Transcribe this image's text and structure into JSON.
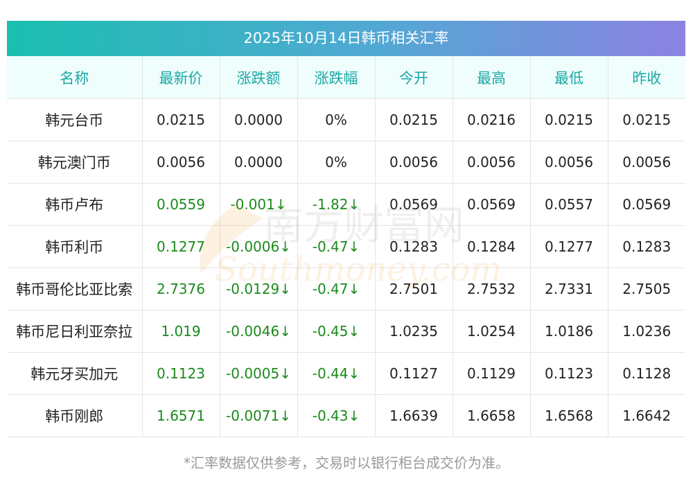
{
  "chart_data": {
    "type": "table",
    "title": "2025年10月14日韩币相关汇率",
    "columns": [
      "名称",
      "最新价",
      "涨跌额",
      "涨跌幅",
      "今开",
      "最高",
      "最低",
      "昨收"
    ],
    "rows": [
      {
        "name": "韩元台币",
        "latest": "0.0215",
        "change": "0.0000",
        "pct": "0%",
        "open": "0.0215",
        "high": "0.0216",
        "low": "0.0215",
        "prev": "0.0215",
        "down": false
      },
      {
        "name": "韩元澳门币",
        "latest": "0.0056",
        "change": "0.0000",
        "pct": "0%",
        "open": "0.0056",
        "high": "0.0056",
        "low": "0.0056",
        "prev": "0.0056",
        "down": false
      },
      {
        "name": "韩币卢布",
        "latest": "0.0559",
        "change": "-0.001↓",
        "pct": "-1.82↓",
        "open": "0.0569",
        "high": "0.0569",
        "low": "0.0557",
        "prev": "0.0569",
        "down": true
      },
      {
        "name": "韩币利币",
        "latest": "0.1277",
        "change": "-0.0006↓",
        "pct": "-0.47↓",
        "open": "0.1283",
        "high": "0.1284",
        "low": "0.1277",
        "prev": "0.1283",
        "down": true
      },
      {
        "name": "韩币哥伦比亚比索",
        "latest": "2.7376",
        "change": "-0.0129↓",
        "pct": "-0.47↓",
        "open": "2.7501",
        "high": "2.7532",
        "low": "2.7331",
        "prev": "2.7505",
        "down": true
      },
      {
        "name": "韩币尼日利亚奈拉",
        "latest": "1.019",
        "change": "-0.0046↓",
        "pct": "-0.45↓",
        "open": "1.0235",
        "high": "1.0254",
        "low": "1.0186",
        "prev": "1.0236",
        "down": true
      },
      {
        "name": "韩元牙买加元",
        "latest": "0.1123",
        "change": "-0.0005↓",
        "pct": "-0.44↓",
        "open": "0.1127",
        "high": "0.1129",
        "low": "0.1123",
        "prev": "0.1128",
        "down": true
      },
      {
        "name": "韩币刚郎",
        "latest": "1.6571",
        "change": "-0.0071↓",
        "pct": "-0.43↓",
        "open": "1.6639",
        "high": "1.6658",
        "low": "1.6568",
        "prev": "1.6642",
        "down": true
      }
    ]
  },
  "colors": {
    "header_text": "#1aa9a5",
    "header_bg": "#f0fdfd",
    "down": "#1a8a1a",
    "title_gradient_start": "#1bbfb0",
    "title_gradient_end": "#8c82e2"
  },
  "watermark": {
    "cn": "南方财富网",
    "en": "Southmoney.com"
  },
  "footer": {
    "note": "*汇率数据仅供参考，交易时以银行柜台成交价为准。"
  }
}
